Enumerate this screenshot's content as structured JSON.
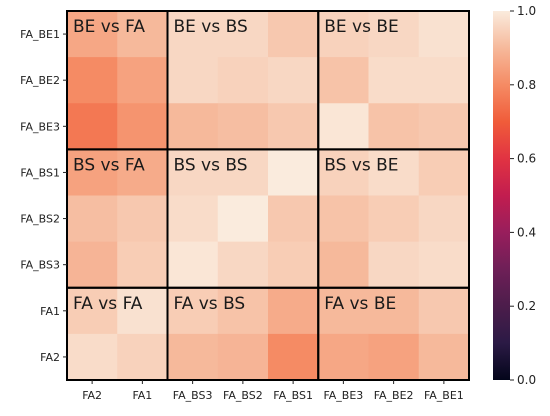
{
  "chart_data": {
    "type": "heatmap",
    "title": "",
    "xlabel": "",
    "ylabel": "",
    "x_labels": [
      "FA2",
      "FA1",
      "FA_BS3",
      "FA_BS2",
      "FA_BS1",
      "FA_BE3",
      "FA_BE2",
      "FA_BE1"
    ],
    "y_labels": [
      "FA_BE1",
      "FA_BE2",
      "FA_BE3",
      "FA_BS1",
      "FA_BS2",
      "FA_BS3",
      "FA1",
      "FA2"
    ],
    "values": [
      [
        0.86,
        0.9,
        0.96,
        0.96,
        0.93,
        0.95,
        0.96,
        0.98
      ],
      [
        0.8,
        0.85,
        0.96,
        0.95,
        0.96,
        0.92,
        0.97,
        0.97
      ],
      [
        0.76,
        0.82,
        0.9,
        0.91,
        0.93,
        0.99,
        0.92,
        0.93
      ],
      [
        0.85,
        0.87,
        0.96,
        0.96,
        1.0,
        0.95,
        0.97,
        0.94
      ],
      [
        0.91,
        0.93,
        0.97,
        1.0,
        0.93,
        0.92,
        0.94,
        0.96
      ],
      [
        0.89,
        0.94,
        0.99,
        0.96,
        0.94,
        0.9,
        0.96,
        0.97
      ],
      [
        0.94,
        0.98,
        0.94,
        0.92,
        0.87,
        0.9,
        0.9,
        0.93
      ],
      [
        0.97,
        0.95,
        0.9,
        0.89,
        0.8,
        0.86,
        0.85,
        0.9
      ]
    ],
    "colorbar": {
      "min": 0.0,
      "max": 1.0,
      "ticks": [
        "0.0",
        "0.2",
        "0.4",
        "0.6",
        "0.8",
        "1.0"
      ]
    },
    "blocks": [
      {
        "label": "BE vs FA",
        "rows": [
          0,
          3
        ],
        "cols": [
          0,
          2
        ]
      },
      {
        "label": "BE vs BS",
        "rows": [
          0,
          3
        ],
        "cols": [
          2,
          5
        ]
      },
      {
        "label": "BE vs BE",
        "rows": [
          0,
          3
        ],
        "cols": [
          5,
          8
        ]
      },
      {
        "label": "BS vs FA",
        "rows": [
          3,
          6
        ],
        "cols": [
          0,
          2
        ]
      },
      {
        "label": "BS vs BS",
        "rows": [
          3,
          6
        ],
        "cols": [
          2,
          5
        ]
      },
      {
        "label": "BS vs BE",
        "rows": [
          3,
          6
        ],
        "cols": [
          5,
          8
        ]
      },
      {
        "label": "FA vs FA",
        "rows": [
          6,
          8
        ],
        "cols": [
          0,
          2
        ]
      },
      {
        "label": "FA vs BS",
        "rows": [
          6,
          8
        ],
        "cols": [
          2,
          5
        ]
      },
      {
        "label": "FA vs BE",
        "rows": [
          6,
          8
        ],
        "cols": [
          5,
          8
        ]
      }
    ],
    "legend": "colorbar-right",
    "grid": false
  }
}
